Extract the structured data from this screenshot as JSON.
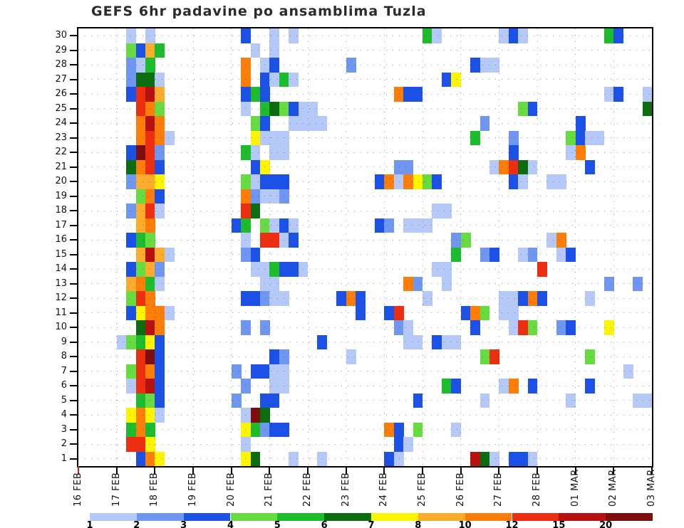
{
  "title": "GEFS 6hr padavine po ansamblima Tuzla",
  "chart_data": {
    "type": "heatmap",
    "x_axis": {
      "tick_labels": [
        "16 FEB",
        "17 FEB",
        "18 FEB",
        "19 FEB",
        "20 FEB",
        "21 FEB",
        "22 FEB",
        "23 FEB",
        "24 FEB",
        "25 FEB",
        "26 FEB",
        "27 FEB",
        "28 FEB",
        "01 MAR",
        "02 MAR",
        "03 MAR"
      ],
      "steps_per_day": 4,
      "total_steps": 60
    },
    "y_axis": {
      "tick_labels": [
        "1",
        "2",
        "3",
        "4",
        "5",
        "6",
        "7",
        "8",
        "9",
        "10",
        "11",
        "12",
        "13",
        "14",
        "15",
        "16",
        "17",
        "18",
        "19",
        "20",
        "21",
        "22",
        "23",
        "24",
        "25",
        "26",
        "27",
        "28",
        "29",
        "30"
      ]
    },
    "colorbar": {
      "tick_labels": [
        "1",
        "2",
        "3",
        "4",
        "5",
        "6",
        "7",
        "8",
        "10",
        "12",
        "15",
        "20"
      ],
      "colors": [
        "#b4c9f8",
        "#6f97f2",
        "#1c51e8",
        "#66dc40",
        "#1cbc2c",
        "#0b6c10",
        "#fdf500",
        "#fcac2c",
        "#fc7e09",
        "#ee2e10",
        "#b71210",
        "#7c0e10"
      ]
    },
    "cells": [
      [
        30,
        5,
        1
      ],
      [
        30,
        7,
        1
      ],
      [
        30,
        17,
        3
      ],
      [
        30,
        20,
        1
      ],
      [
        30,
        22,
        1
      ],
      [
        30,
        36,
        5
      ],
      [
        30,
        37,
        1
      ],
      [
        30,
        44,
        1
      ],
      [
        30,
        45,
        3
      ],
      [
        30,
        46,
        1
      ],
      [
        30,
        55,
        5
      ],
      [
        30,
        56,
        3
      ],
      [
        29,
        5,
        4
      ],
      [
        29,
        6,
        3
      ],
      [
        29,
        7,
        8
      ],
      [
        29,
        8,
        5
      ],
      [
        29,
        18,
        1
      ],
      [
        29,
        20,
        1
      ],
      [
        28,
        5,
        2
      ],
      [
        28,
        6,
        1
      ],
      [
        28,
        7,
        5
      ],
      [
        28,
        17,
        9
      ],
      [
        28,
        19,
        1
      ],
      [
        28,
        20,
        3
      ],
      [
        28,
        28,
        2
      ],
      [
        28,
        41,
        3
      ],
      [
        28,
        42,
        1
      ],
      [
        28,
        43,
        1
      ],
      [
        27,
        5,
        2
      ],
      [
        27,
        6,
        6
      ],
      [
        27,
        7,
        6
      ],
      [
        27,
        8,
        1
      ],
      [
        27,
        17,
        9
      ],
      [
        27,
        19,
        3
      ],
      [
        27,
        20,
        1
      ],
      [
        27,
        21,
        5
      ],
      [
        27,
        22,
        1
      ],
      [
        27,
        38,
        3
      ],
      [
        27,
        39,
        7
      ],
      [
        26,
        5,
        3
      ],
      [
        26,
        6,
        10
      ],
      [
        26,
        7,
        11
      ],
      [
        26,
        8,
        8
      ],
      [
        26,
        17,
        3
      ],
      [
        26,
        18,
        5
      ],
      [
        26,
        19,
        3
      ],
      [
        26,
        33,
        9
      ],
      [
        26,
        34,
        3
      ],
      [
        26,
        35,
        3
      ],
      [
        26,
        55,
        1
      ],
      [
        26,
        56,
        3
      ],
      [
        26,
        59,
        1
      ],
      [
        25,
        6,
        10
      ],
      [
        25,
        7,
        9
      ],
      [
        25,
        8,
        4
      ],
      [
        25,
        17,
        1
      ],
      [
        25,
        19,
        5
      ],
      [
        25,
        20,
        6
      ],
      [
        25,
        21,
        4
      ],
      [
        25,
        22,
        3
      ],
      [
        25,
        23,
        1
      ],
      [
        25,
        24,
        1
      ],
      [
        25,
        46,
        4
      ],
      [
        25,
        47,
        3
      ],
      [
        25,
        59,
        6
      ],
      [
        24,
        6,
        9
      ],
      [
        24,
        7,
        11
      ],
      [
        24,
        8,
        9
      ],
      [
        24,
        18,
        4
      ],
      [
        24,
        19,
        3
      ],
      [
        24,
        22,
        1
      ],
      [
        24,
        23,
        1
      ],
      [
        24,
        24,
        1
      ],
      [
        24,
        25,
        1
      ],
      [
        24,
        42,
        2
      ],
      [
        24,
        52,
        3
      ],
      [
        23,
        6,
        9
      ],
      [
        23,
        7,
        10
      ],
      [
        23,
        8,
        9
      ],
      [
        23,
        9,
        1
      ],
      [
        23,
        18,
        7
      ],
      [
        23,
        19,
        1
      ],
      [
        23,
        20,
        1
      ],
      [
        23,
        21,
        1
      ],
      [
        23,
        41,
        5
      ],
      [
        23,
        45,
        2
      ],
      [
        23,
        51,
        4
      ],
      [
        23,
        52,
        3
      ],
      [
        23,
        53,
        1
      ],
      [
        23,
        54,
        1
      ],
      [
        22,
        5,
        3
      ],
      [
        22,
        6,
        12
      ],
      [
        22,
        7,
        10
      ],
      [
        22,
        8,
        2
      ],
      [
        22,
        17,
        5
      ],
      [
        22,
        18,
        1
      ],
      [
        22,
        20,
        1
      ],
      [
        22,
        21,
        1
      ],
      [
        22,
        45,
        3
      ],
      [
        22,
        51,
        1
      ],
      [
        22,
        52,
        9
      ],
      [
        21,
        5,
        6
      ],
      [
        21,
        6,
        9
      ],
      [
        21,
        7,
        10
      ],
      [
        21,
        8,
        3
      ],
      [
        21,
        18,
        3
      ],
      [
        21,
        19,
        7
      ],
      [
        21,
        33,
        2
      ],
      [
        21,
        34,
        2
      ],
      [
        21,
        43,
        1
      ],
      [
        21,
        44,
        9
      ],
      [
        21,
        45,
        10
      ],
      [
        21,
        46,
        6
      ],
      [
        21,
        47,
        1
      ],
      [
        21,
        53,
        3
      ],
      [
        20,
        5,
        2
      ],
      [
        20,
        6,
        8
      ],
      [
        20,
        7,
        8
      ],
      [
        20,
        8,
        7
      ],
      [
        20,
        17,
        4
      ],
      [
        20,
        18,
        1
      ],
      [
        20,
        19,
        3
      ],
      [
        20,
        20,
        3
      ],
      [
        20,
        21,
        3
      ],
      [
        20,
        31,
        3
      ],
      [
        20,
        32,
        9
      ],
      [
        20,
        33,
        1
      ],
      [
        20,
        34,
        9
      ],
      [
        20,
        35,
        7
      ],
      [
        20,
        36,
        4
      ],
      [
        20,
        37,
        3
      ],
      [
        20,
        45,
        3
      ],
      [
        20,
        46,
        1
      ],
      [
        20,
        49,
        1
      ],
      [
        20,
        50,
        1
      ],
      [
        19,
        6,
        4
      ],
      [
        19,
        7,
        9
      ],
      [
        19,
        8,
        3
      ],
      [
        19,
        17,
        9
      ],
      [
        19,
        18,
        2
      ],
      [
        19,
        19,
        1
      ],
      [
        19,
        20,
        1
      ],
      [
        19,
        21,
        2
      ],
      [
        18,
        5,
        2
      ],
      [
        18,
        6,
        8
      ],
      [
        18,
        7,
        10
      ],
      [
        18,
        8,
        1
      ],
      [
        18,
        17,
        10
      ],
      [
        18,
        18,
        6
      ],
      [
        18,
        37,
        1
      ],
      [
        18,
        38,
        1
      ],
      [
        17,
        6,
        8
      ],
      [
        17,
        7,
        9
      ],
      [
        17,
        16,
        3
      ],
      [
        17,
        17,
        5
      ],
      [
        17,
        19,
        4
      ],
      [
        17,
        20,
        1
      ],
      [
        17,
        21,
        3
      ],
      [
        17,
        22,
        1
      ],
      [
        17,
        31,
        3
      ],
      [
        17,
        32,
        2
      ],
      [
        17,
        34,
        1
      ],
      [
        17,
        35,
        1
      ],
      [
        17,
        36,
        1
      ],
      [
        16,
        5,
        3
      ],
      [
        16,
        6,
        5
      ],
      [
        16,
        7,
        4
      ],
      [
        16,
        17,
        1
      ],
      [
        16,
        19,
        10
      ],
      [
        16,
        20,
        10
      ],
      [
        16,
        21,
        1
      ],
      [
        16,
        22,
        3
      ],
      [
        16,
        39,
        2
      ],
      [
        16,
        40,
        4
      ],
      [
        16,
        49,
        1
      ],
      [
        16,
        50,
        9
      ],
      [
        15,
        6,
        8
      ],
      [
        15,
        7,
        11
      ],
      [
        15,
        8,
        8
      ],
      [
        15,
        9,
        1
      ],
      [
        15,
        17,
        2
      ],
      [
        15,
        18,
        3
      ],
      [
        15,
        39,
        5
      ],
      [
        15,
        42,
        2
      ],
      [
        15,
        43,
        3
      ],
      [
        15,
        46,
        1
      ],
      [
        15,
        47,
        2
      ],
      [
        15,
        50,
        1
      ],
      [
        15,
        51,
        3
      ],
      [
        14,
        5,
        3
      ],
      [
        14,
        6,
        4
      ],
      [
        14,
        7,
        8
      ],
      [
        14,
        8,
        2
      ],
      [
        14,
        18,
        1
      ],
      [
        14,
        19,
        1
      ],
      [
        14,
        20,
        5
      ],
      [
        14,
        21,
        3
      ],
      [
        14,
        22,
        3
      ],
      [
        14,
        23,
        1
      ],
      [
        14,
        37,
        1
      ],
      [
        14,
        38,
        1
      ],
      [
        14,
        48,
        10
      ],
      [
        13,
        5,
        8
      ],
      [
        13,
        6,
        9
      ],
      [
        13,
        7,
        5
      ],
      [
        13,
        8,
        1
      ],
      [
        13,
        19,
        1
      ],
      [
        13,
        20,
        1
      ],
      [
        13,
        34,
        9
      ],
      [
        13,
        35,
        2
      ],
      [
        13,
        38,
        1
      ],
      [
        13,
        55,
        2
      ],
      [
        13,
        58,
        2
      ],
      [
        12,
        5,
        4
      ],
      [
        12,
        6,
        10
      ],
      [
        12,
        7,
        9
      ],
      [
        12,
        17,
        3
      ],
      [
        12,
        18,
        3
      ],
      [
        12,
        19,
        2
      ],
      [
        12,
        20,
        1
      ],
      [
        12,
        21,
        1
      ],
      [
        12,
        27,
        3
      ],
      [
        12,
        28,
        9
      ],
      [
        12,
        29,
        3
      ],
      [
        12,
        36,
        1
      ],
      [
        12,
        44,
        1
      ],
      [
        12,
        45,
        1
      ],
      [
        12,
        46,
        3
      ],
      [
        12,
        47,
        9
      ],
      [
        12,
        48,
        3
      ],
      [
        12,
        53,
        1
      ],
      [
        11,
        5,
        3
      ],
      [
        11,
        6,
        7
      ],
      [
        11,
        7,
        9
      ],
      [
        11,
        8,
        9
      ],
      [
        11,
        9,
        1
      ],
      [
        11,
        29,
        3
      ],
      [
        11,
        32,
        3
      ],
      [
        11,
        33,
        10
      ],
      [
        11,
        40,
        3
      ],
      [
        11,
        41,
        9
      ],
      [
        11,
        42,
        4
      ],
      [
        11,
        44,
        1
      ],
      [
        11,
        45,
        1
      ],
      [
        10,
        6,
        6
      ],
      [
        10,
        7,
        11
      ],
      [
        10,
        8,
        9
      ],
      [
        10,
        17,
        2
      ],
      [
        10,
        19,
        2
      ],
      [
        10,
        33,
        2
      ],
      [
        10,
        34,
        1
      ],
      [
        10,
        41,
        3
      ],
      [
        10,
        45,
        1
      ],
      [
        10,
        46,
        10
      ],
      [
        10,
        47,
        4
      ],
      [
        10,
        50,
        2
      ],
      [
        10,
        51,
        3
      ],
      [
        10,
        55,
        7
      ],
      [
        9,
        4,
        1
      ],
      [
        9,
        5,
        4
      ],
      [
        9,
        6,
        5
      ],
      [
        9,
        7,
        7
      ],
      [
        9,
        8,
        3
      ],
      [
        9,
        25,
        3
      ],
      [
        9,
        34,
        1
      ],
      [
        9,
        35,
        1
      ],
      [
        9,
        37,
        3
      ],
      [
        9,
        38,
        1
      ],
      [
        9,
        39,
        1
      ],
      [
        8,
        6,
        10
      ],
      [
        8,
        7,
        12
      ],
      [
        8,
        8,
        3
      ],
      [
        8,
        20,
        3
      ],
      [
        8,
        21,
        2
      ],
      [
        8,
        28,
        1
      ],
      [
        8,
        42,
        4
      ],
      [
        8,
        43,
        10
      ],
      [
        8,
        53,
        4
      ],
      [
        7,
        5,
        4
      ],
      [
        7,
        6,
        10
      ],
      [
        7,
        7,
        9
      ],
      [
        7,
        8,
        3
      ],
      [
        7,
        16,
        2
      ],
      [
        7,
        18,
        3
      ],
      [
        7,
        19,
        3
      ],
      [
        7,
        20,
        1
      ],
      [
        7,
        21,
        1
      ],
      [
        7,
        57,
        1
      ],
      [
        6,
        5,
        1
      ],
      [
        6,
        6,
        10
      ],
      [
        6,
        7,
        11
      ],
      [
        6,
        8,
        3
      ],
      [
        6,
        17,
        2
      ],
      [
        6,
        20,
        1
      ],
      [
        6,
        21,
        1
      ],
      [
        6,
        38,
        5
      ],
      [
        6,
        39,
        3
      ],
      [
        6,
        44,
        1
      ],
      [
        6,
        45,
        9
      ],
      [
        6,
        47,
        3
      ],
      [
        6,
        53,
        3
      ],
      [
        5,
        6,
        5
      ],
      [
        5,
        7,
        4
      ],
      [
        5,
        8,
        3
      ],
      [
        5,
        16,
        2
      ],
      [
        5,
        19,
        3
      ],
      [
        5,
        20,
        3
      ],
      [
        5,
        35,
        3
      ],
      [
        5,
        42,
        1
      ],
      [
        5,
        51,
        1
      ],
      [
        5,
        58,
        1
      ],
      [
        5,
        59,
        1
      ],
      [
        4,
        5,
        7
      ],
      [
        4,
        6,
        9
      ],
      [
        4,
        7,
        7
      ],
      [
        4,
        8,
        1
      ],
      [
        4,
        17,
        1
      ],
      [
        4,
        18,
        12
      ],
      [
        4,
        19,
        6
      ],
      [
        3,
        5,
        5
      ],
      [
        3,
        6,
        9
      ],
      [
        3,
        7,
        5
      ],
      [
        3,
        17,
        7
      ],
      [
        3,
        18,
        5
      ],
      [
        3,
        19,
        2
      ],
      [
        3,
        20,
        3
      ],
      [
        3,
        21,
        3
      ],
      [
        3,
        32,
        9
      ],
      [
        3,
        33,
        3
      ],
      [
        3,
        35,
        4
      ],
      [
        3,
        39,
        1
      ],
      [
        2,
        5,
        10
      ],
      [
        2,
        6,
        10
      ],
      [
        2,
        7,
        7
      ],
      [
        2,
        17,
        1
      ],
      [
        2,
        33,
        3
      ],
      [
        2,
        34,
        1
      ],
      [
        1,
        6,
        3
      ],
      [
        1,
        7,
        9
      ],
      [
        1,
        8,
        7
      ],
      [
        1,
        17,
        7
      ],
      [
        1,
        18,
        6
      ],
      [
        1,
        22,
        1
      ],
      [
        1,
        25,
        1
      ],
      [
        1,
        32,
        3
      ],
      [
        1,
        33,
        1
      ],
      [
        1,
        41,
        11
      ],
      [
        1,
        42,
        6
      ],
      [
        1,
        43,
        1
      ],
      [
        1,
        45,
        3
      ],
      [
        1,
        46,
        3
      ],
      [
        1,
        47,
        1
      ]
    ]
  }
}
